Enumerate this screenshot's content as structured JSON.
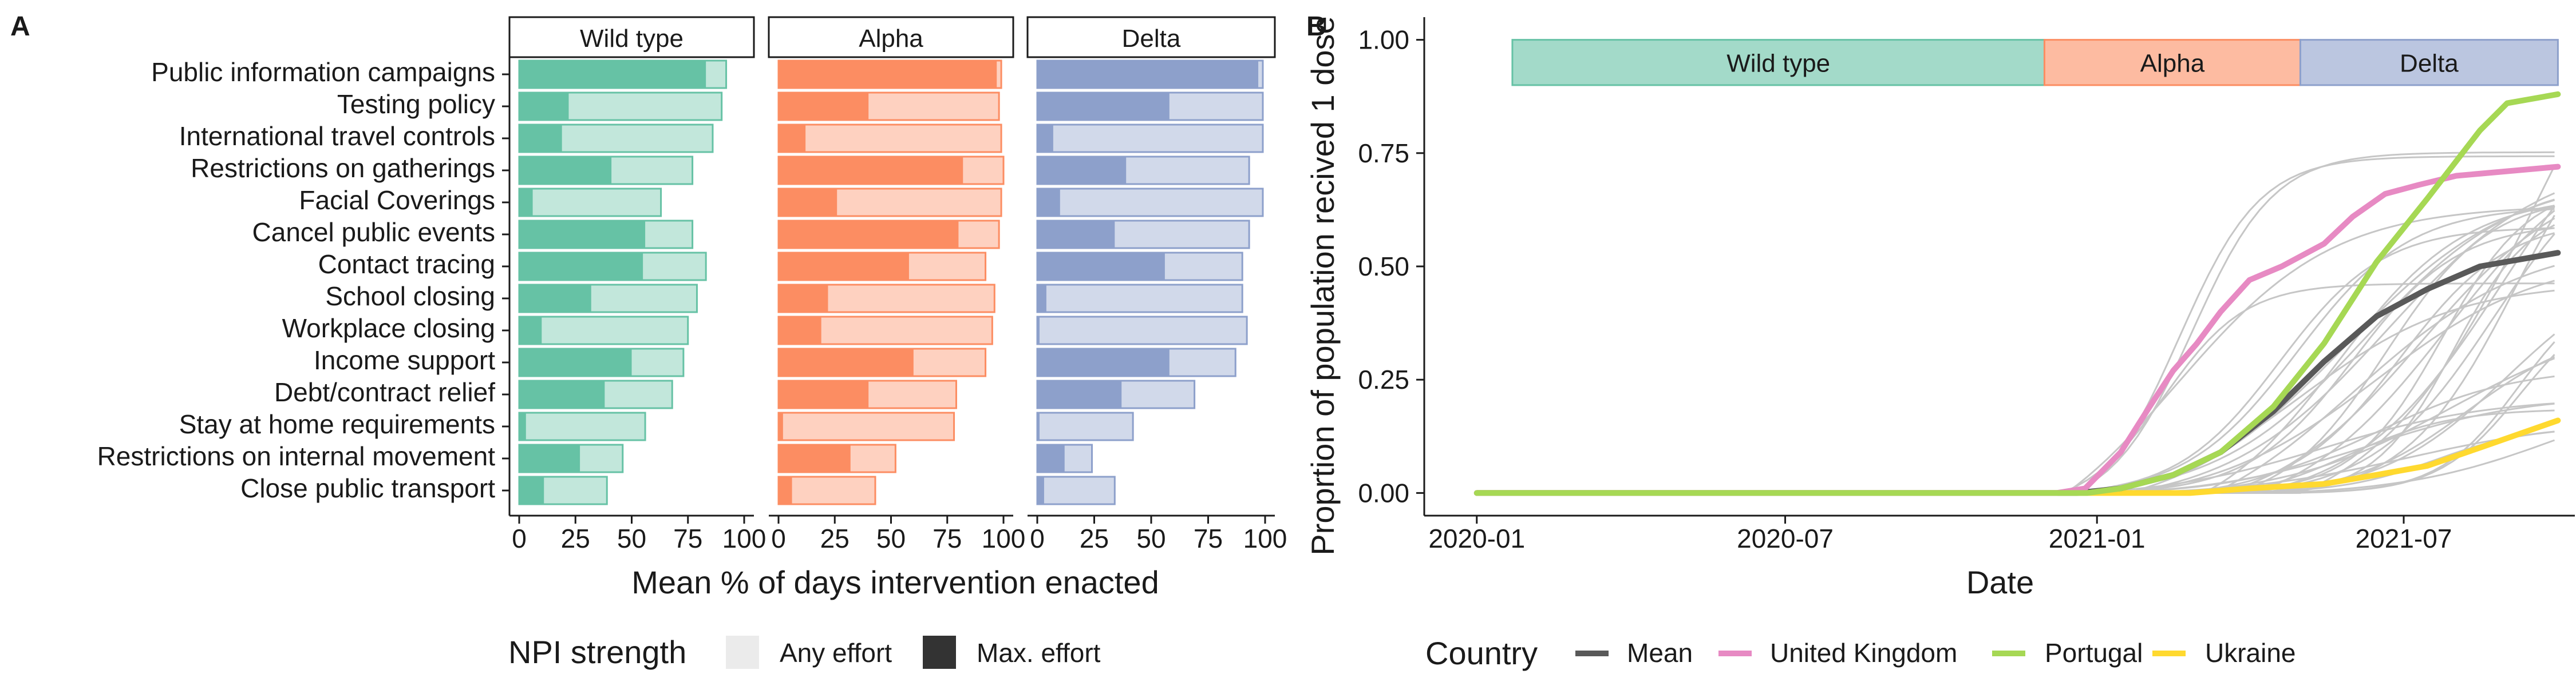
{
  "panel_labels": {
    "a": "A",
    "b": "B"
  },
  "colors": {
    "wild_type": "#66c2a5",
    "alpha": "#fc8d62",
    "delta": "#8da0cb",
    "mean": "#595959",
    "united_kingdom": "#e78ac3",
    "portugal": "#a6d854",
    "ukraine": "#ffd92f",
    "other_countries": "#c6c6c6",
    "legend_any": "#ebebeb",
    "legend_max": "#333333"
  },
  "chart_data": [
    {
      "type": "bar",
      "orientation": "horizontal",
      "facets": [
        "Wild type",
        "Alpha",
        "Delta"
      ],
      "categories": [
        "Public information campaigns",
        "Testing policy",
        "International travel controls",
        "Restrictions on gatherings",
        "Facial Coverings",
        "Cancel public events",
        "Contact tracing",
        "School closing",
        "Workplace closing",
        "Income support",
        "Debt/contract relief",
        "Stay at home requirements",
        "Restrictions on internal movement",
        "Close public transport"
      ],
      "series": [
        {
          "name": "Any effort",
          "values": {
            "Wild type": [
              92,
              90,
              86,
              77,
              63,
              77,
              83,
              79,
              75,
              73,
              68,
              56,
              46,
              39
            ],
            "Alpha": [
              99,
              98,
              99,
              100,
              99,
              98,
              92,
              96,
              95,
              92,
              79,
              78,
              52,
              43
            ],
            "Delta": [
              99,
              99,
              99,
              93,
              99,
              93,
              90,
              90,
              92,
              87,
              69,
              42,
              24,
              34
            ]
          }
        },
        {
          "name": "Max. effort",
          "values": {
            "Wild type": [
              83,
              22,
              19,
              41,
              6,
              56,
              55,
              32,
              10,
              50,
              38,
              3,
              27,
              11
            ],
            "Alpha": [
              97,
              40,
              12,
              82,
              26,
              80,
              58,
              22,
              19,
              60,
              40,
              2,
              32,
              6
            ],
            "Delta": [
              97,
              58,
              7,
              39,
              10,
              34,
              56,
              4,
              1,
              58,
              37,
              1,
              12,
              3
            ]
          }
        }
      ],
      "xlabel": "Mean % of days intervention enacted",
      "ylabel": "",
      "xlim": [
        0,
        100
      ],
      "xticks": [
        "0",
        "25",
        "50",
        "75",
        "100"
      ],
      "legend": {
        "title": "NPI strength",
        "entries": [
          "Any effort",
          "Max. effort"
        ],
        "position": "bottom"
      }
    },
    {
      "type": "line",
      "xlabel": "Date",
      "ylabel": "Proprtion of population recived 1 dose",
      "xlim": [
        "2019-12-01",
        "2021-10-10"
      ],
      "ylim": [
        -0.05,
        1.05
      ],
      "xticks": [
        "2020-01",
        "2020-07",
        "2021-01",
        "2021-07"
      ],
      "yticks": [
        "0.00",
        "0.25",
        "0.50",
        "0.75",
        "1.00"
      ],
      "periods": [
        {
          "name": "Wild type",
          "start": "2020-01-22",
          "end": "2020-12-01"
        },
        {
          "name": "Alpha",
          "start": "2020-12-01",
          "end": "2021-05-01"
        },
        {
          "name": "Delta",
          "start": "2021-05-01",
          "end": "2021-09-30"
        }
      ],
      "series": [
        {
          "name": "Mean",
          "points": [
            [
              "2020-01-01",
              0
            ],
            [
              "2020-12-20",
              0
            ],
            [
              "2021-01-15",
              0.01
            ],
            [
              "2021-02-15",
              0.04
            ],
            [
              "2021-03-15",
              0.09
            ],
            [
              "2021-04-15",
              0.18
            ],
            [
              "2021-05-15",
              0.29
            ],
            [
              "2021-06-15",
              0.39
            ],
            [
              "2021-07-15",
              0.45
            ],
            [
              "2021-08-15",
              0.5
            ],
            [
              "2021-09-30",
              0.53
            ]
          ]
        },
        {
          "name": "United Kingdom",
          "points": [
            [
              "2020-01-01",
              0
            ],
            [
              "2020-12-08",
              0
            ],
            [
              "2020-12-25",
              0.01
            ],
            [
              "2021-01-15",
              0.09
            ],
            [
              "2021-02-01",
              0.19
            ],
            [
              "2021-02-15",
              0.27
            ],
            [
              "2021-03-01",
              0.33
            ],
            [
              "2021-03-15",
              0.4
            ],
            [
              "2021-04-01",
              0.47
            ],
            [
              "2021-04-20",
              0.5
            ],
            [
              "2021-05-15",
              0.55
            ],
            [
              "2021-06-01",
              0.61
            ],
            [
              "2021-06-20",
              0.66
            ],
            [
              "2021-07-10",
              0.68
            ],
            [
              "2021-08-01",
              0.7
            ],
            [
              "2021-09-30",
              0.72
            ]
          ]
        },
        {
          "name": "Portugal",
          "points": [
            [
              "2020-01-01",
              0
            ],
            [
              "2020-12-26",
              0
            ],
            [
              "2021-01-15",
              0.01
            ],
            [
              "2021-02-15",
              0.04
            ],
            [
              "2021-03-15",
              0.09
            ],
            [
              "2021-04-15",
              0.19
            ],
            [
              "2021-05-15",
              0.33
            ],
            [
              "2021-06-15",
              0.51
            ],
            [
              "2021-07-15",
              0.65
            ],
            [
              "2021-08-15",
              0.8
            ],
            [
              "2021-08-31",
              0.86
            ],
            [
              "2021-09-30",
              0.88
            ]
          ]
        },
        {
          "name": "Ukraine",
          "points": [
            [
              "2020-01-01",
              0
            ],
            [
              "2021-02-25",
              0
            ],
            [
              "2021-04-01",
              0.01
            ],
            [
              "2021-05-15",
              0.02
            ],
            [
              "2021-06-15",
              0.04
            ],
            [
              "2021-07-15",
              0.06
            ],
            [
              "2021-08-15",
              0.1
            ],
            [
              "2021-09-30",
              0.16
            ]
          ]
        }
      ],
      "background_series_count": 36,
      "legend": {
        "title": "Country",
        "entries": [
          "Mean",
          "United Kingdom",
          "Portugal",
          "Ukraine"
        ],
        "position": "bottom"
      }
    }
  ]
}
